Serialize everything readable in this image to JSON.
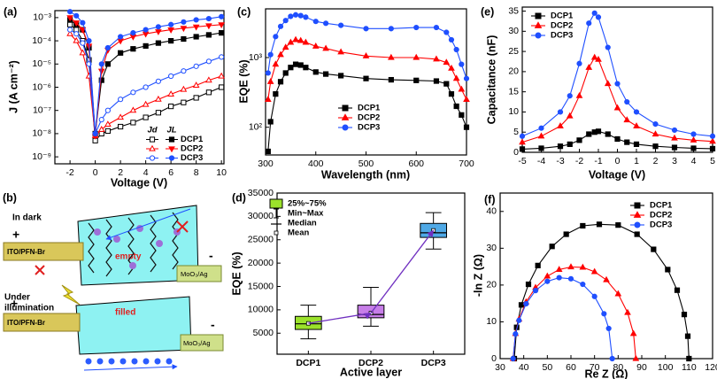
{
  "chart_data": [
    {
      "type": "line",
      "panel_label": "(a)",
      "x_label": "Voltage (V)",
      "y_label": "J (A cm⁻²)",
      "ylog": true,
      "xlim": [
        -3.2,
        10.2
      ],
      "ylim": [
        5e-10,
        0.002
      ],
      "xticks": [
        -2,
        0,
        2,
        4,
        6,
        8,
        10
      ],
      "yticks": [
        {
          "value": 1e-09,
          "label": "10⁻⁹"
        },
        {
          "value": 1e-08,
          "label": "10⁻⁸"
        },
        {
          "value": 1e-07,
          "label": "10⁻⁷"
        },
        {
          "value": 1e-06,
          "label": "10⁻⁶"
        },
        {
          "value": 1e-05,
          "label": "10⁻⁵"
        },
        {
          "value": 0.0001,
          "label": "10⁻⁴"
        },
        {
          "value": 0.001,
          "label": "10⁻³"
        }
      ],
      "legend_headers": [
        "Jd",
        "JL"
      ],
      "x": [
        -2,
        -1.5,
        -1,
        -0.5,
        0,
        0.5,
        1,
        2,
        3,
        4,
        5,
        6,
        7,
        8,
        9,
        10
      ],
      "series": [
        {
          "name": "DCP1",
          "color": "#000000",
          "dark": {
            "marker": "square",
            "filled": false,
            "values": [
              0.0005,
              0.0003,
              0.0001,
              1.5e-05,
              5e-09,
              1e-08,
              1.3e-08,
              2e-08,
              3e-08,
              5e-08,
              8e-08,
              1.5e-07,
              2.2e-07,
              3.5e-07,
              6e-07,
              1e-06
            ]
          },
          "light": {
            "marker": "square",
            "filled": true,
            "values": [
              0.0008,
              0.0005,
              0.0003,
              5e-05,
              1e-08,
              2e-06,
              1e-05,
              3e-05,
              4.5e-05,
              6e-05,
              8e-05,
              0.0001,
              0.00012,
              0.00015,
              0.00018,
              0.00022
            ]
          }
        },
        {
          "name": "DCP2",
          "color": "#ff0000",
          "dark": {
            "marker": "triangle",
            "filled": false,
            "values": [
              0.0002,
              0.0001,
              3e-05,
              3e-06,
              8e-09,
              1.5e-08,
              2.5e-08,
              5e-08,
              1e-07,
              1.8e-07,
              3e-07,
              5e-07,
              8e-07,
              1.2e-06,
              2e-06,
              3e-06
            ]
          },
          "light": {
            "marker": "triangle-down",
            "filled": true,
            "values": [
              0.001,
              0.0006,
              0.0003,
              6e-05,
              8e-09,
              5e-06,
              4e-05,
              0.0001,
              0.00015,
              0.0002,
              0.00025,
              0.0003,
              0.00035,
              0.0004,
              0.00045,
              0.0005
            ]
          }
        },
        {
          "name": "DCP3",
          "color": "#1f4fff",
          "dark": {
            "marker": "circle",
            "filled": false,
            "values": [
              0.0003,
              0.0002,
              8e-05,
              1e-05,
              1e-08,
              4e-08,
              1e-07,
              3e-07,
              6e-07,
              1e-06,
              1.8e-06,
              3e-06,
              5e-06,
              8e-06,
              1.3e-05,
              2e-05
            ]
          },
          "light": {
            "marker": "circle",
            "filled": true,
            "values": [
              0.0018,
              0.0012,
              0.0006,
              0.0001,
              1e-08,
              1e-05,
              5e-05,
              0.00015,
              0.00022,
              0.0003,
              0.0004,
              0.0005,
              0.00065,
              0.0008,
              0.0009,
              0.0011
            ]
          }
        }
      ]
    },
    {
      "type": "line",
      "panel_label": "(c)",
      "x_label": "Wavelength (nm)",
      "y_label": "EQE (%)",
      "ylog": true,
      "xlim": [
        300,
        700
      ],
      "ylim": [
        40,
        5000
      ],
      "xticks": [
        300,
        400,
        500,
        600,
        700
      ],
      "yticks": [
        {
          "value": 100,
          "label": "10²"
        },
        {
          "value": 1000,
          "label": "10³"
        }
      ],
      "x": [
        305,
        310,
        320,
        330,
        340,
        350,
        360,
        370,
        380,
        400,
        420,
        450,
        500,
        550,
        600,
        640,
        660,
        670,
        680,
        690,
        700
      ],
      "series": [
        {
          "name": "DCP1",
          "color": "#000000",
          "marker": "square",
          "filled": true,
          "values": [
            45,
            120,
            300,
            450,
            600,
            720,
            800,
            780,
            720,
            620,
            580,
            550,
            500,
            480,
            470,
            460,
            420,
            300,
            200,
            150,
            100
          ]
        },
        {
          "name": "DCP2",
          "color": "#ff0000",
          "marker": "triangle",
          "filled": true,
          "values": [
            250,
            450,
            800,
            1100,
            1400,
            1650,
            1800,
            1750,
            1650,
            1450,
            1350,
            1200,
            1050,
            1000,
            1000,
            950,
            850,
            700,
            500,
            350,
            250
          ]
        },
        {
          "name": "DCP3",
          "color": "#1f4fff",
          "marker": "circle",
          "filled": true,
          "values": [
            600,
            1100,
            2000,
            2800,
            3400,
            3900,
            4100,
            4000,
            3800,
            3300,
            3100,
            2900,
            2600,
            2600,
            2700,
            2700,
            2300,
            1800,
            1300,
            800,
            500
          ]
        }
      ]
    },
    {
      "type": "line",
      "panel_label": "(e)",
      "x_label": "Voltage (V)",
      "y_label": "Capacitance (nF)",
      "xlim": [
        -5,
        5
      ],
      "ylim": [
        0,
        36
      ],
      "xticks": [
        -5,
        -4,
        -3,
        -2,
        -1,
        0,
        1,
        2,
        3,
        4,
        5
      ],
      "yticks": [
        0,
        5,
        10,
        15,
        20,
        25,
        30,
        35
      ],
      "x": [
        -5,
        -4,
        -3,
        -2.5,
        -2,
        -1.5,
        -1.2,
        -1,
        -0.5,
        0,
        0.5,
        1,
        2,
        3,
        4,
        5
      ],
      "series": [
        {
          "name": "DCP1",
          "color": "#000000",
          "marker": "square",
          "filled": true,
          "values": [
            0.8,
            1,
            1.5,
            2,
            3,
            4.5,
            5,
            5.2,
            4.5,
            3.3,
            2.5,
            2,
            1.5,
            1.2,
            1,
            0.9
          ]
        },
        {
          "name": "DCP2",
          "color": "#ff0000",
          "marker": "triangle",
          "filled": true,
          "values": [
            2.5,
            4,
            6.5,
            9,
            14,
            21,
            23.5,
            23,
            17,
            11,
            8,
            6.5,
            4.5,
            3.5,
            3,
            2.7
          ]
        },
        {
          "name": "DCP3",
          "color": "#1f4fff",
          "marker": "circle",
          "filled": true,
          "values": [
            4,
            6,
            10,
            14,
            22,
            32,
            34.5,
            33.5,
            26,
            17,
            12.5,
            10,
            7,
            5.5,
            4.5,
            4
          ]
        }
      ]
    },
    {
      "type": "box",
      "panel_label": "(d)",
      "x_label": "Active layer",
      "y_label": "EQE (%)",
      "ylim": [
        500,
        35000
      ],
      "yticks": [
        5000,
        10000,
        15000,
        20000,
        25000,
        30000,
        35000
      ],
      "categories": [
        "DCP1",
        "DCP2",
        "DCP3"
      ],
      "colors": [
        "#9be22b",
        "#c77ee8",
        "#4fa9e6"
      ],
      "mean_line_color": "#7030c0",
      "legend_labels": [
        "25%~75%",
        "Min~Max",
        "Median",
        "Mean"
      ],
      "boxes": [
        {
          "min": 3800,
          "q1": 5800,
          "median": 7000,
          "q3": 8600,
          "max": 11000,
          "mean": 7100
        },
        {
          "min": 6500,
          "q1": 8300,
          "median": 9000,
          "q3": 11000,
          "max": 14800,
          "mean": 9300
        },
        {
          "min": 23000,
          "q1": 25500,
          "median": 26500,
          "q3": 28500,
          "max": 30800,
          "mean": 27000
        }
      ]
    },
    {
      "type": "scatter",
      "panel_label": "(f)",
      "x_label": "Re Z (Ω)",
      "y_label": "-ln Z (Ω)",
      "xlim": [
        30,
        120
      ],
      "ylim": [
        0,
        45
      ],
      "xticks": [
        30,
        40,
        50,
        60,
        70,
        80,
        90,
        100,
        110,
        120
      ],
      "yticks": [
        0,
        10,
        20,
        30,
        40
      ],
      "series": [
        {
          "name": "DCP1",
          "color": "#000000",
          "marker": "square",
          "x": [
            36,
            37,
            39,
            42,
            46,
            52,
            58,
            65,
            72,
            80,
            88,
            95,
            101,
            105,
            108,
            109.5,
            110
          ],
          "y": [
            0,
            8.5,
            14.6,
            20.2,
            25.3,
            30.5,
            33.8,
            36.1,
            36.5,
            36.3,
            33.8,
            29.7,
            24.2,
            18.6,
            12,
            6.1,
            0
          ]
        },
        {
          "name": "DCP2",
          "color": "#ff0000",
          "marker": "triangle",
          "x": [
            35.5,
            36.5,
            38,
            41,
            45,
            50,
            55,
            60,
            65,
            70,
            75,
            80,
            84,
            86.5,
            87.5
          ],
          "y": [
            0,
            6.8,
            10.7,
            15.4,
            19.3,
            22.4,
            24.2,
            24.9,
            24.8,
            23.6,
            21.4,
            17.6,
            12.5,
            6.8,
            0
          ]
        },
        {
          "name": "DCP3",
          "color": "#1f4fff",
          "marker": "circle",
          "x": [
            35.5,
            36.5,
            38,
            41,
            45,
            50,
            55,
            60,
            65,
            70,
            74,
            76,
            77.5
          ],
          "y": [
            0,
            6.7,
            10.4,
            14.9,
            18.5,
            21,
            22,
            21.7,
            20.2,
            16.9,
            12.2,
            8.2,
            0
          ]
        }
      ]
    }
  ],
  "diagram": {
    "panel_label": "(b)",
    "dark": {
      "label": "In dark",
      "anode": "ITO/PFN-Br",
      "cathode": "MoO₃/Ag",
      "state": "empty",
      "plus": "+",
      "minus": "-"
    },
    "light": {
      "label_lines": [
        "Under",
        "illumination"
      ],
      "anode": "ITO/PFN-Br",
      "cathode": "MoO₃/Ag",
      "state": "filled",
      "plus": "+",
      "minus": "-"
    }
  }
}
